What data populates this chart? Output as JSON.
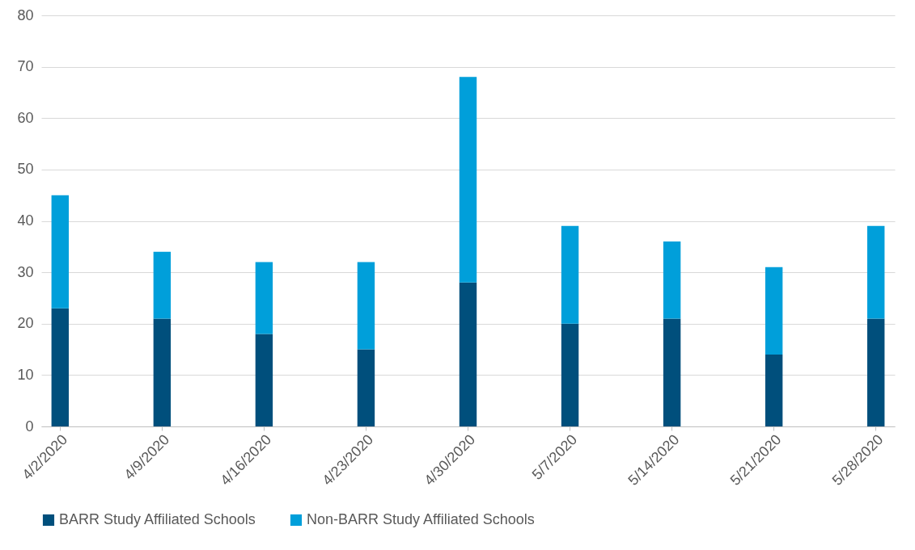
{
  "chart_data": {
    "type": "bar",
    "stacked": true,
    "categories": [
      "4/2/2020",
      "4/9/2020",
      "4/16/2020",
      "4/23/2020",
      "4/30/2020",
      "5/7/2020",
      "5/14/2020",
      "5/21/2020",
      "5/28/2020"
    ],
    "series": [
      {
        "name": "BARR Study Affiliated Schools",
        "color": "#004f7c",
        "values": [
          23,
          21,
          18,
          15,
          28,
          20,
          21,
          14,
          21
        ]
      },
      {
        "name": "Non-BARR Study Affiliated Schools",
        "color": "#009fda",
        "values": [
          22,
          13,
          14,
          17,
          40,
          19,
          15,
          17,
          18
        ]
      }
    ],
    "ylim": [
      0,
      80
    ],
    "yticks": [
      0,
      10,
      20,
      30,
      40,
      50,
      60,
      70,
      80
    ],
    "grid": "y",
    "legend": "bottom"
  }
}
